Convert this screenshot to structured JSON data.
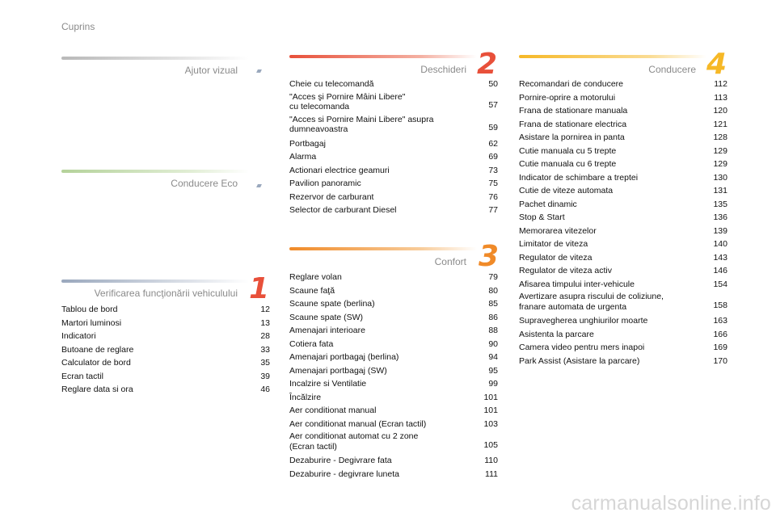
{
  "header": {
    "title": "Cuprins"
  },
  "sections": {
    "ajutor": {
      "title": "Ajutor vizual"
    },
    "eco": {
      "title": "Conducere Eco"
    },
    "verificarea": {
      "number": "1",
      "title": "Verificarea funcţionării vehiculului",
      "items": [
        {
          "title": "Tablou de bord",
          "page": "12"
        },
        {
          "title": "Martori luminosi",
          "page": "13"
        },
        {
          "title": "Indicatori",
          "page": "28"
        },
        {
          "title": "Butoane de reglare",
          "page": "33"
        },
        {
          "title": "Calculator de bord",
          "page": "35"
        },
        {
          "title": "Ecran tactil",
          "page": "39"
        },
        {
          "title": "Reglare data si ora",
          "page": "46"
        }
      ]
    },
    "deschideri": {
      "number": "2",
      "title": "Deschideri",
      "items": [
        {
          "title": "Cheie cu telecomandă",
          "page": "50"
        },
        {
          "title": "\"Acces şi Pornire Mâini Libere\"\n   cu telecomanda",
          "page": "57"
        },
        {
          "title": "\"Acces si Pornire Maini Libere\" asupra\n   dumneavoastra",
          "page": "59"
        },
        {
          "title": "Portbagaj",
          "page": "62"
        },
        {
          "title": "Alarma",
          "page": "69"
        },
        {
          "title": "Actionari electrice geamuri",
          "page": "73"
        },
        {
          "title": "Pavilion panoramic",
          "page": "75"
        },
        {
          "title": "Rezervor de carburant",
          "page": "76"
        },
        {
          "title": "Selector de carburant Diesel",
          "page": "77"
        }
      ]
    },
    "confort": {
      "number": "3",
      "title": "Confort",
      "items": [
        {
          "title": "Reglare volan",
          "page": "79"
        },
        {
          "title": "Scaune faţă",
          "page": "80"
        },
        {
          "title": "Scaune spate (berlina)",
          "page": "85"
        },
        {
          "title": "Scaune spate (SW)",
          "page": "86"
        },
        {
          "title": "Amenajari interioare",
          "page": "88"
        },
        {
          "title": "Cotiera fata",
          "page": "90"
        },
        {
          "title": "Amenajari portbagaj (berlina)",
          "page": "94"
        },
        {
          "title": "Amenajari portbagaj (SW)",
          "page": "95"
        },
        {
          "title": "Incalzire si Ventilatie",
          "page": "99"
        },
        {
          "title": "Încălzire",
          "page": "101"
        },
        {
          "title": "Aer conditionat manual",
          "page": "101"
        },
        {
          "title": "Aer conditionat manual (Ecran tactil)",
          "page": "103"
        },
        {
          "title": "Aer conditionat automat cu 2 zone\n   (Ecran tactil)",
          "page": "105"
        },
        {
          "title": "Dezaburire - Degivrare fata",
          "page": "110"
        },
        {
          "title": "Dezaburire - degivrare luneta",
          "page": "111"
        }
      ]
    },
    "conducere": {
      "number": "4",
      "title": "Conducere",
      "items": [
        {
          "title": "Recomandari de conducere",
          "page": "112"
        },
        {
          "title": "Pornire-oprire a motorului",
          "page": "113"
        },
        {
          "title": "Frana de stationare manuala",
          "page": "120"
        },
        {
          "title": "Frana de stationare electrica",
          "page": "121"
        },
        {
          "title": "Asistare la pornirea in panta",
          "page": "128"
        },
        {
          "title": "Cutie manuala cu 5 trepte",
          "page": "129"
        },
        {
          "title": "Cutie manuala cu 6 trepte",
          "page": "129"
        },
        {
          "title": "Indicator de schimbare a treptei",
          "page": "130"
        },
        {
          "title": "Cutie de viteze automata",
          "page": "131"
        },
        {
          "title": "Pachet dinamic",
          "page": "135"
        },
        {
          "title": "Stop & Start",
          "page": "136"
        },
        {
          "title": "Memorarea vitezelor",
          "page": "139"
        },
        {
          "title": "Limitator de viteza",
          "page": "140"
        },
        {
          "title": "Regulator de viteza",
          "page": "143"
        },
        {
          "title": "Regulator de viteza activ",
          "page": "146"
        },
        {
          "title": "Afisarea timpului inter-vehicule",
          "page": "154"
        },
        {
          "title": "Avertizare asupra riscului de coliziune,\n   franare automata de urgenta",
          "page": "158"
        },
        {
          "title": "Supravegherea unghiurilor moarte",
          "page": "163"
        },
        {
          "title": "Asistenta la parcare",
          "page": "166"
        },
        {
          "title": "Camera video pentru mers inapoi",
          "page": "169"
        },
        {
          "title": "Park Assist (Asistare la parcare)",
          "page": "170"
        }
      ]
    }
  },
  "watermark": "carmanualsonline.info",
  "colors": {
    "grey_bar": "#c8c8c8",
    "green_bar": "#c9dcb4",
    "red_bar": "#e8503a",
    "orange_bar": "#f08a28",
    "yellow_bar": "#f6b826"
  }
}
